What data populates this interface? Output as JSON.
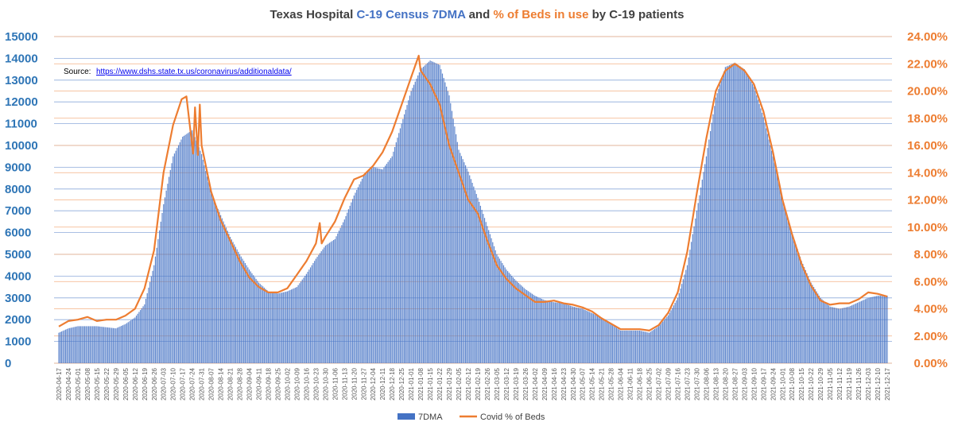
{
  "chart_data": {
    "type": "bar+line",
    "title": {
      "parts": [
        {
          "text": "Texas Hospital ",
          "color": "#404040"
        },
        {
          "text": "C-19 Census 7DMA",
          "color": "#4472c4"
        },
        {
          "text": " and ",
          "color": "#404040"
        },
        {
          "text": "% of Beds in use",
          "color": "#ed7d31"
        },
        {
          "text": " by C-19 patients",
          "color": "#404040"
        }
      ]
    },
    "source": {
      "label": "Source:",
      "url": "https://www.dshs.state.tx.us/coronavirus/additionaldata/"
    },
    "left_axis": {
      "min": 0,
      "max": 15000,
      "step": 1000,
      "ticks": [
        "0",
        "1000",
        "2000",
        "3000",
        "4000",
        "5000",
        "6000",
        "7000",
        "8000",
        "9000",
        "10000",
        "11000",
        "12000",
        "13000",
        "14000",
        "15000"
      ],
      "color": "#2e75b6"
    },
    "right_axis": {
      "min": 0,
      "max": 24,
      "step": 2,
      "ticks": [
        "0.00%",
        "2.00%",
        "4.00%",
        "6.00%",
        "8.00%",
        "10.00%",
        "12.00%",
        "14.00%",
        "16.00%",
        "18.00%",
        "20.00%",
        "22.00%",
        "24.00%"
      ],
      "color": "#ed7d31"
    },
    "x_ticks": [
      "2020-04-17",
      "2020-04-24",
      "2020-05-01",
      "2020-05-08",
      "2020-05-15",
      "2020-05-22",
      "2020-05-29",
      "2020-06-05",
      "2020-06-12",
      "2020-06-19",
      "2020-06-26",
      "2020-07-03",
      "2020-07-10",
      "2020-07-17",
      "2020-07-24",
      "2020-07-31",
      "2020-08-07",
      "2020-08-14",
      "2020-08-21",
      "2020-08-28",
      "2020-09-04",
      "2020-09-11",
      "2020-09-18",
      "2020-09-25",
      "2020-10-02",
      "2020-10-09",
      "2020-10-16",
      "2020-10-23",
      "2020-10-30",
      "2020-11-06",
      "2020-11-13",
      "2020-11-20",
      "2020-11-27",
      "2020-12-04",
      "2020-12-11",
      "2020-12-18",
      "2020-12-25",
      "2021-01-01",
      "2021-01-08",
      "2021-01-15",
      "2021-01-22",
      "2021-01-29",
      "2021-02-05",
      "2021-02-12",
      "2021-02-19",
      "2021-02-26",
      "2021-03-05",
      "2021-03-12",
      "2021-03-19",
      "2021-03-26",
      "2021-04-02",
      "2021-04-09",
      "2021-04-16",
      "2021-04-23",
      "2021-04-30",
      "2021-05-07",
      "2021-05-14",
      "2021-05-21",
      "2021-05-28",
      "2021-06-04",
      "2021-06-11",
      "2021-06-18",
      "2021-06-25",
      "2021-07-02",
      "2021-07-09",
      "2021-07-16",
      "2021-07-23",
      "2021-07-30",
      "2021-08-06",
      "2021-08-13",
      "2021-08-20",
      "2021-08-27",
      "2021-09-03",
      "2021-09-10",
      "2021-09-17",
      "2021-09-24",
      "2021-10-01",
      "2021-10-08",
      "2021-10-15",
      "2021-10-22",
      "2021-10-29",
      "2021-11-05",
      "2021-11-12",
      "2021-11-19",
      "2021-11-26",
      "2021-12-03",
      "2021-12-10",
      "2021-12-17"
    ],
    "series": [
      {
        "name": "7DMA",
        "axis": "left",
        "kind": "bar",
        "color": "#4472c4",
        "weekly_values": [
          1400,
          1600,
          1700,
          1700,
          1700,
          1650,
          1600,
          1800,
          2100,
          2700,
          4500,
          7300,
          9500,
          10400,
          10700,
          9600,
          7800,
          6800,
          5800,
          5000,
          4300,
          3700,
          3300,
          3200,
          3300,
          3500,
          4100,
          4800,
          5400,
          5700,
          6600,
          7700,
          8600,
          9000,
          8900,
          9500,
          11000,
          12500,
          13500,
          13900,
          13700,
          12300,
          9800,
          8800,
          7600,
          6300,
          5000,
          4300,
          3800,
          3400,
          3100,
          2900,
          2800,
          2750,
          2600,
          2500,
          2300,
          2100,
          1800,
          1500,
          1500,
          1500,
          1400,
          1700,
          2200,
          3000,
          4500,
          7000,
          9500,
          12200,
          13600,
          13800,
          13500,
          12700,
          11300,
          9500,
          7500,
          6000,
          4700,
          3700,
          3000,
          2600,
          2500,
          2600,
          2800,
          3000,
          3100,
          3100
        ]
      },
      {
        "name": "Covid % of Beds",
        "axis": "right",
        "kind": "line",
        "color": "#ed7d31",
        "points": [
          [
            0,
            2.7
          ],
          [
            1,
            3.1
          ],
          [
            2,
            3.2
          ],
          [
            3,
            3.4
          ],
          [
            4,
            3.1
          ],
          [
            5,
            3.2
          ],
          [
            6,
            3.2
          ],
          [
            7,
            3.5
          ],
          [
            8,
            4.0
          ],
          [
            9,
            5.5
          ],
          [
            10,
            8.3
          ],
          [
            11,
            14.0
          ],
          [
            12,
            17.5
          ],
          [
            12.9,
            19.4
          ],
          [
            13.4,
            19.6
          ],
          [
            14.1,
            15.4
          ],
          [
            14.3,
            18.8
          ],
          [
            14.6,
            15.3
          ],
          [
            14.8,
            19.0
          ],
          [
            15,
            16.0
          ],
          [
            16,
            12.6
          ],
          [
            17,
            10.5
          ],
          [
            18,
            9.0
          ],
          [
            19,
            7.5
          ],
          [
            20,
            6.3
          ],
          [
            21,
            5.6
          ],
          [
            22,
            5.2
          ],
          [
            23,
            5.2
          ],
          [
            24,
            5.5
          ],
          [
            25,
            6.5
          ],
          [
            26,
            7.5
          ],
          [
            27,
            8.8
          ],
          [
            27.4,
            10.3
          ],
          [
            27.6,
            8.8
          ],
          [
            28,
            9.3
          ],
          [
            29,
            10.4
          ],
          [
            30,
            12.1
          ],
          [
            31,
            13.5
          ],
          [
            32,
            13.8
          ],
          [
            33,
            14.5
          ],
          [
            34,
            15.5
          ],
          [
            35,
            17.0
          ],
          [
            36,
            19.0
          ],
          [
            37,
            21.0
          ],
          [
            37.8,
            22.6
          ],
          [
            38,
            21.5
          ],
          [
            39,
            20.5
          ],
          [
            40,
            19.0
          ],
          [
            41,
            16.0
          ],
          [
            42,
            14.0
          ],
          [
            43,
            12.0
          ],
          [
            44,
            11.0
          ],
          [
            45,
            9.0
          ],
          [
            46,
            7.2
          ],
          [
            47,
            6.2
          ],
          [
            48,
            5.5
          ],
          [
            49,
            5.0
          ],
          [
            50,
            4.5
          ],
          [
            51,
            4.5
          ],
          [
            52,
            4.6
          ],
          [
            53,
            4.4
          ],
          [
            54,
            4.3
          ],
          [
            55,
            4.1
          ],
          [
            56,
            3.8
          ],
          [
            57,
            3.3
          ],
          [
            58,
            2.9
          ],
          [
            59,
            2.5
          ],
          [
            60,
            2.5
          ],
          [
            61,
            2.5
          ],
          [
            62,
            2.4
          ],
          [
            63,
            2.8
          ],
          [
            64,
            3.7
          ],
          [
            65,
            5.2
          ],
          [
            66,
            8.2
          ],
          [
            67,
            12.5
          ],
          [
            68,
            16.5
          ],
          [
            69,
            20.0
          ],
          [
            70,
            21.5
          ],
          [
            71,
            22.0
          ],
          [
            72,
            21.5
          ],
          [
            73,
            20.5
          ],
          [
            74,
            18.5
          ],
          [
            75,
            15.5
          ],
          [
            76,
            12.0
          ],
          [
            77,
            9.5
          ],
          [
            78,
            7.3
          ],
          [
            79,
            5.7
          ],
          [
            80,
            4.6
          ],
          [
            81,
            4.3
          ],
          [
            82,
            4.4
          ],
          [
            83,
            4.4
          ],
          [
            84,
            4.7
          ],
          [
            85,
            5.2
          ],
          [
            86,
            5.1
          ],
          [
            87,
            4.9
          ]
        ]
      }
    ],
    "legend": [
      {
        "name": "7DMA",
        "style": "bar",
        "color": "#4472c4"
      },
      {
        "name": "Covid % of Beds",
        "style": "line",
        "color": "#ed7d31"
      }
    ]
  }
}
